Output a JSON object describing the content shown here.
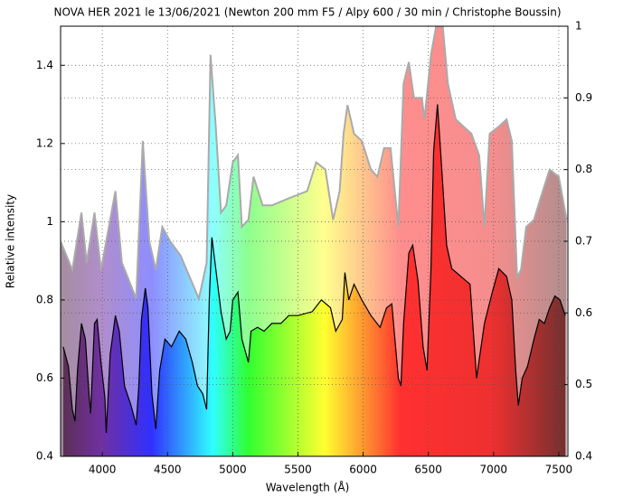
{
  "chart_data": {
    "type": "line",
    "title": "NOVA HER 2021 le 13/06/2021 (Newton 200 mm F5 / Alpy 600 / 30 min / Christophe Boussin)",
    "x_label": "Wavelength (Å)",
    "y_label": "Relative intensity",
    "xlim": [
      3680,
      7570
    ],
    "xticks": [
      4000,
      4500,
      5000,
      5500,
      6000,
      6500,
      7000,
      7500
    ],
    "ylim": [
      0.4,
      1.5
    ],
    "yticks": [
      0.4,
      0.6,
      0.8,
      1,
      1.2,
      1.4
    ],
    "y2lim": [
      0.4,
      1
    ],
    "y2ticks": [
      0.4,
      0.5,
      0.6,
      0.7,
      0.8,
      0.9,
      1
    ],
    "grid": true,
    "series": [
      {
        "color": "#aaaaaa",
        "axis": "y2",
        "x": [
          3680,
          3770,
          3840,
          3880,
          3940,
          3990,
          4100,
          4150,
          4260,
          4310,
          4360,
          4410,
          4460,
          4520,
          4600,
          4670,
          4740,
          4800,
          4830,
          4870,
          4910,
          4950,
          5000,
          5040,
          5070,
          5120,
          5160,
          5230,
          5300,
          5430,
          5570,
          5640,
          5710,
          5770,
          5820,
          5850,
          5880,
          5930,
          5990,
          6060,
          6110,
          6160,
          6210,
          6270,
          6310,
          6350,
          6390,
          6450,
          6470,
          6520,
          6560,
          6610,
          6650,
          6710,
          6770,
          6830,
          6890,
          6930,
          6970,
          7040,
          7100,
          7140,
          7180,
          7210,
          7250,
          7310,
          7360,
          7430,
          7500,
          7560
        ],
        "values": [
          0.7,
          0.66,
          0.74,
          0.67,
          0.74,
          0.66,
          0.77,
          0.67,
          0.62,
          0.84,
          0.7,
          0.66,
          0.72,
          0.7,
          0.68,
          0.65,
          0.62,
          0.67,
          0.96,
          0.86,
          0.74,
          0.75,
          0.81,
          0.82,
          0.72,
          0.73,
          0.79,
          0.75,
          0.75,
          0.76,
          0.77,
          0.81,
          0.8,
          0.73,
          0.77,
          0.85,
          0.89,
          0.85,
          0.84,
          0.8,
          0.79,
          0.83,
          0.83,
          0.72,
          0.92,
          0.95,
          0.9,
          0.9,
          0.87,
          0.96,
          1.0,
          1.0,
          0.92,
          0.87,
          0.86,
          0.85,
          0.82,
          0.72,
          0.85,
          0.86,
          0.87,
          0.84,
          0.65,
          0.66,
          0.72,
          0.73,
          0.76,
          0.8,
          0.79,
          0.73
        ]
      },
      {
        "color": "#000000",
        "x": [
          3700,
          3740,
          3770,
          3790,
          3810,
          3840,
          3870,
          3900,
          3910,
          3940,
          3960,
          3990,
          4020,
          4030,
          4060,
          4100,
          4130,
          4170,
          4220,
          4260,
          4280,
          4300,
          4330,
          4350,
          4380,
          4410,
          4440,
          4480,
          4530,
          4590,
          4640,
          4690,
          4730,
          4770,
          4800,
          4820,
          4840,
          4870,
          4910,
          4950,
          4980,
          5000,
          5040,
          5070,
          5120,
          5140,
          5190,
          5240,
          5300,
          5370,
          5430,
          5500,
          5610,
          5680,
          5750,
          5790,
          5840,
          5860,
          5890,
          5930,
          5990,
          6060,
          6130,
          6180,
          6220,
          6270,
          6290,
          6310,
          6350,
          6380,
          6420,
          6460,
          6490,
          6520,
          6540,
          6570,
          6600,
          6640,
          6680,
          6750,
          6820,
          6870,
          6930,
          6990,
          7040,
          7100,
          7140,
          7170,
          7190,
          7220,
          7260,
          7310,
          7350,
          7390,
          7430,
          7470,
          7510,
          7550
        ],
        "values": [
          0.68,
          0.63,
          0.52,
          0.49,
          0.62,
          0.74,
          0.7,
          0.55,
          0.51,
          0.74,
          0.75,
          0.64,
          0.55,
          0.46,
          0.66,
          0.76,
          0.72,
          0.58,
          0.53,
          0.48,
          0.58,
          0.75,
          0.83,
          0.78,
          0.56,
          0.47,
          0.62,
          0.7,
          0.68,
          0.72,
          0.7,
          0.64,
          0.58,
          0.56,
          0.52,
          0.8,
          0.96,
          0.88,
          0.77,
          0.7,
          0.72,
          0.8,
          0.82,
          0.7,
          0.64,
          0.72,
          0.73,
          0.72,
          0.74,
          0.74,
          0.76,
          0.76,
          0.77,
          0.8,
          0.78,
          0.72,
          0.75,
          0.87,
          0.8,
          0.84,
          0.8,
          0.76,
          0.73,
          0.78,
          0.79,
          0.6,
          0.58,
          0.74,
          0.92,
          0.94,
          0.85,
          0.68,
          0.62,
          0.88,
          1.18,
          1.3,
          1.15,
          0.94,
          0.88,
          0.86,
          0.84,
          0.6,
          0.74,
          0.82,
          0.88,
          0.86,
          0.8,
          0.62,
          0.53,
          0.6,
          0.63,
          0.7,
          0.75,
          0.74,
          0.78,
          0.81,
          0.8,
          0.76
        ]
      }
    ]
  }
}
